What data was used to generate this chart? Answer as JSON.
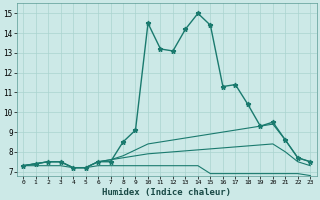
{
  "xlabel": "Humidex (Indice chaleur)",
  "ylabel": "",
  "xlim": [
    -0.5,
    23.5
  ],
  "ylim": [
    6.8,
    15.5
  ],
  "bg_color": "#cce9e7",
  "grid_color": "#aad4d0",
  "line_color": "#1a7a6e",
  "x_ticks": [
    0,
    1,
    2,
    3,
    4,
    5,
    6,
    7,
    8,
    9,
    10,
    11,
    12,
    13,
    14,
    15,
    16,
    17,
    18,
    19,
    20,
    21,
    22,
    23
  ],
  "y_ticks": [
    7,
    8,
    9,
    10,
    11,
    12,
    13,
    14,
    15
  ],
  "series": [
    {
      "x": [
        0,
        1,
        2,
        3,
        4,
        5,
        6,
        7,
        8,
        9,
        10,
        11,
        12,
        13,
        14,
        15,
        16,
        17,
        18,
        19,
        20,
        21,
        22,
        23
      ],
      "y": [
        7.3,
        7.4,
        7.5,
        7.5,
        7.2,
        7.2,
        7.5,
        7.5,
        8.5,
        9.1,
        14.5,
        13.2,
        13.1,
        14.2,
        15.0,
        14.4,
        11.3,
        11.4,
        10.4,
        9.3,
        9.5,
        8.6,
        7.7,
        7.5
      ],
      "marker": "*",
      "linewidth": 1.0,
      "markersize": 3.5
    },
    {
      "x": [
        0,
        1,
        2,
        3,
        4,
        5,
        6,
        7,
        8,
        9,
        10,
        11,
        12,
        13,
        14,
        15,
        16,
        17,
        18,
        19,
        20,
        21,
        22,
        23
      ],
      "y": [
        7.3,
        7.4,
        7.5,
        7.5,
        7.2,
        7.2,
        7.5,
        7.6,
        7.8,
        8.1,
        8.4,
        8.5,
        8.6,
        8.7,
        8.8,
        8.9,
        9.0,
        9.1,
        9.2,
        9.3,
        9.4,
        8.6,
        7.7,
        7.5
      ],
      "marker": null,
      "linewidth": 0.8,
      "markersize": 0
    },
    {
      "x": [
        0,
        1,
        2,
        3,
        4,
        5,
        6,
        7,
        8,
        9,
        10,
        11,
        12,
        13,
        14,
        15,
        16,
        17,
        18,
        19,
        20,
        21,
        22,
        23
      ],
      "y": [
        7.3,
        7.4,
        7.5,
        7.5,
        7.2,
        7.2,
        7.5,
        7.6,
        7.7,
        7.8,
        7.9,
        7.95,
        8.0,
        8.05,
        8.1,
        8.15,
        8.2,
        8.25,
        8.3,
        8.35,
        8.4,
        8.0,
        7.5,
        7.3
      ],
      "marker": null,
      "linewidth": 0.8,
      "markersize": 0
    },
    {
      "x": [
        0,
        1,
        2,
        3,
        4,
        5,
        6,
        7,
        8,
        9,
        10,
        11,
        12,
        13,
        14,
        15,
        16,
        17,
        18,
        19,
        20,
        21,
        22,
        23
      ],
      "y": [
        7.3,
        7.3,
        7.3,
        7.3,
        7.2,
        7.2,
        7.3,
        7.3,
        7.3,
        7.3,
        7.3,
        7.3,
        7.3,
        7.3,
        7.3,
        6.9,
        6.9,
        6.9,
        6.9,
        6.9,
        6.9,
        6.9,
        6.9,
        6.8
      ],
      "marker": null,
      "linewidth": 0.8,
      "markersize": 0
    }
  ]
}
